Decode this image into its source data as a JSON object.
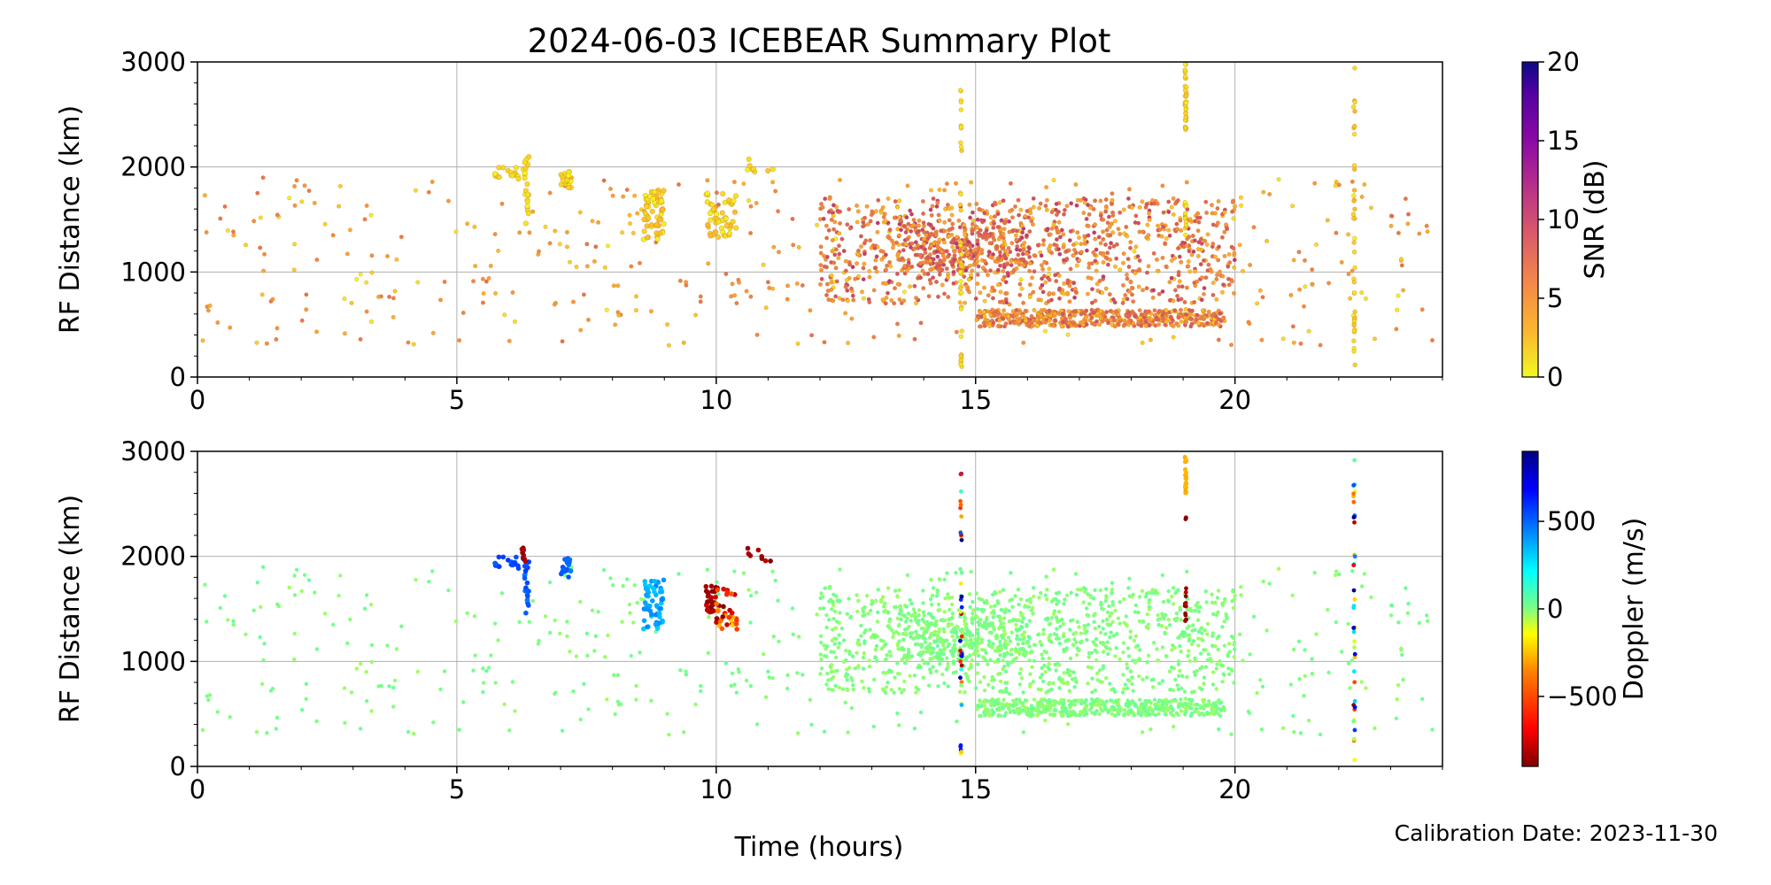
{
  "title": "2024-06-03 ICEBEAR Summary Plot",
  "xlabel": "Time (hours)",
  "calibration_text": "Calibration Date: 2023-11-30",
  "colors": {
    "grid": "#b0b0b0",
    "snr_low": "#f7e01c",
    "snr_mid": "#f29a3c",
    "snr_high": "#c2358a",
    "snr_max": "#0d0887",
    "doppler_zero": "#74f46a",
    "doppler_pos": "#12a5f5",
    "doppler_neg": "#b20000"
  },
  "chart_data": [
    {
      "type": "scatter",
      "name": "snr_panel",
      "ylabel": "RF Distance (km)",
      "xlim": [
        0,
        24
      ],
      "ylim": [
        0,
        3000
      ],
      "xticks": [
        0,
        5,
        10,
        15,
        20
      ],
      "yticks": [
        0,
        1000,
        2000,
        3000
      ],
      "grid": true,
      "colorbar": {
        "label": "SNR (dB)",
        "range": [
          0,
          20
        ],
        "ticks": [
          0,
          5,
          10,
          15,
          20
        ],
        "colormap": "plasma_r"
      },
      "description_free": true,
      "clusters": [
        {
          "x": [
            0,
            24
          ],
          "y": [
            300,
            1900
          ],
          "count": 420,
          "c": [
            0,
            8
          ]
        },
        {
          "x": [
            12,
            20
          ],
          "y": [
            700,
            1700
          ],
          "count": 900,
          "c": [
            2,
            12
          ]
        },
        {
          "x": [
            15,
            19.8
          ],
          "y": [
            480,
            640
          ],
          "count": 500,
          "c": [
            2,
            10
          ]
        },
        {
          "x": [
            13.5,
            16
          ],
          "y": [
            1000,
            1500
          ],
          "count": 300,
          "c": [
            3,
            12
          ]
        },
        {
          "x": [
            5.7,
            6.3
          ],
          "y": [
            1880,
            2000
          ],
          "count": 20,
          "c": [
            0,
            2
          ]
        },
        {
          "x": [
            6.3,
            6.4
          ],
          "y": [
            1450,
            2100
          ],
          "count": 20,
          "c": [
            0,
            2
          ]
        },
        {
          "x": [
            7.0,
            7.2
          ],
          "y": [
            1800,
            1980
          ],
          "count": 20,
          "c": [
            0,
            2
          ]
        },
        {
          "x": [
            8.6,
            9.0
          ],
          "y": [
            1300,
            1780
          ],
          "count": 60,
          "c": [
            0,
            3
          ]
        },
        {
          "x": [
            9.8,
            10.4
          ],
          "y": [
            1300,
            1750
          ],
          "count": 50,
          "c": [
            0,
            3
          ]
        },
        {
          "x": [
            10.6,
            11.1
          ],
          "y": [
            1950,
            2080
          ],
          "count": 8,
          "c": [
            0,
            2
          ]
        }
      ],
      "vertical_streaks": [
        {
          "x": 14.72,
          "y": [
            50,
            2800
          ],
          "count": 40,
          "c": [
            0,
            2
          ]
        },
        {
          "x": 19.05,
          "y": [
            2350,
            2980
          ],
          "count": 35,
          "c": [
            0,
            2
          ]
        },
        {
          "x": 19.05,
          "y": [
            1350,
            1700
          ],
          "count": 12,
          "c": [
            0,
            2
          ]
        },
        {
          "x": 22.3,
          "y": [
            50,
            2980
          ],
          "count": 40,
          "c": [
            0,
            3
          ]
        }
      ]
    },
    {
      "type": "scatter",
      "name": "doppler_panel",
      "ylabel": "RF Distance (km)",
      "xlim": [
        0,
        24
      ],
      "ylim": [
        0,
        3000
      ],
      "xticks": [
        0,
        5,
        10,
        15,
        20
      ],
      "yticks": [
        0,
        1000,
        2000,
        3000
      ],
      "grid": true,
      "colorbar": {
        "label": "Doppler (m/s)",
        "range": [
          -900,
          900
        ],
        "ticks": [
          -500,
          0,
          500
        ],
        "tick_labels": [
          "−500",
          "0",
          "500"
        ],
        "colormap": "jet_r"
      },
      "clusters": [
        {
          "x": [
            0,
            24
          ],
          "y": [
            300,
            1900
          ],
          "count": 420,
          "c": [
            -40,
            40
          ]
        },
        {
          "x": [
            12,
            20
          ],
          "y": [
            700,
            1700
          ],
          "count": 900,
          "c": [
            -40,
            40
          ]
        },
        {
          "x": [
            15,
            19.8
          ],
          "y": [
            480,
            640
          ],
          "count": 500,
          "c": [
            -40,
            40
          ]
        },
        {
          "x": [
            13.5,
            16
          ],
          "y": [
            1000,
            1500
          ],
          "count": 300,
          "c": [
            -40,
            40
          ]
        },
        {
          "x": [
            5.7,
            6.3
          ],
          "y": [
            1880,
            2000
          ],
          "count": 20,
          "c": [
            500,
            600
          ]
        },
        {
          "x": [
            6.3,
            6.4
          ],
          "y": [
            1450,
            1950
          ],
          "count": 20,
          "c": [
            450,
            600
          ]
        },
        {
          "x": [
            6.25,
            6.32
          ],
          "y": [
            1950,
            2120
          ],
          "count": 8,
          "c": [
            -900,
            -800
          ]
        },
        {
          "x": [
            7.0,
            7.2
          ],
          "y": [
            1800,
            1980
          ],
          "count": 20,
          "c": [
            450,
            550
          ]
        },
        {
          "x": [
            8.6,
            9.0
          ],
          "y": [
            1300,
            1780
          ],
          "count": 60,
          "c": [
            300,
            450
          ]
        },
        {
          "x": [
            9.8,
            10.0
          ],
          "y": [
            1450,
            1720
          ],
          "count": 30,
          "c": [
            -900,
            -750
          ]
        },
        {
          "x": [
            10.0,
            10.4
          ],
          "y": [
            1300,
            1700
          ],
          "count": 35,
          "c": [
            -900,
            -200
          ]
        },
        {
          "x": [
            10.6,
            11.1
          ],
          "y": [
            1950,
            2080
          ],
          "count": 8,
          "c": [
            -900,
            -800
          ]
        }
      ],
      "vertical_streaks": [
        {
          "x": 14.72,
          "y": [
            50,
            2800
          ],
          "count": 40,
          "c": [
            -900,
            900
          ]
        },
        {
          "x": 19.05,
          "y": [
            2600,
            2980
          ],
          "count": 30,
          "c": [
            -300,
            -250
          ]
        },
        {
          "x": 19.05,
          "y": [
            1350,
            1700
          ],
          "count": 12,
          "c": [
            -900,
            -800
          ]
        },
        {
          "x": 19.05,
          "y": [
            2350,
            2380
          ],
          "count": 3,
          "c": [
            -900,
            -850
          ]
        },
        {
          "x": 22.3,
          "y": [
            50,
            2980
          ],
          "count": 40,
          "c": [
            -900,
            900
          ]
        }
      ]
    }
  ]
}
